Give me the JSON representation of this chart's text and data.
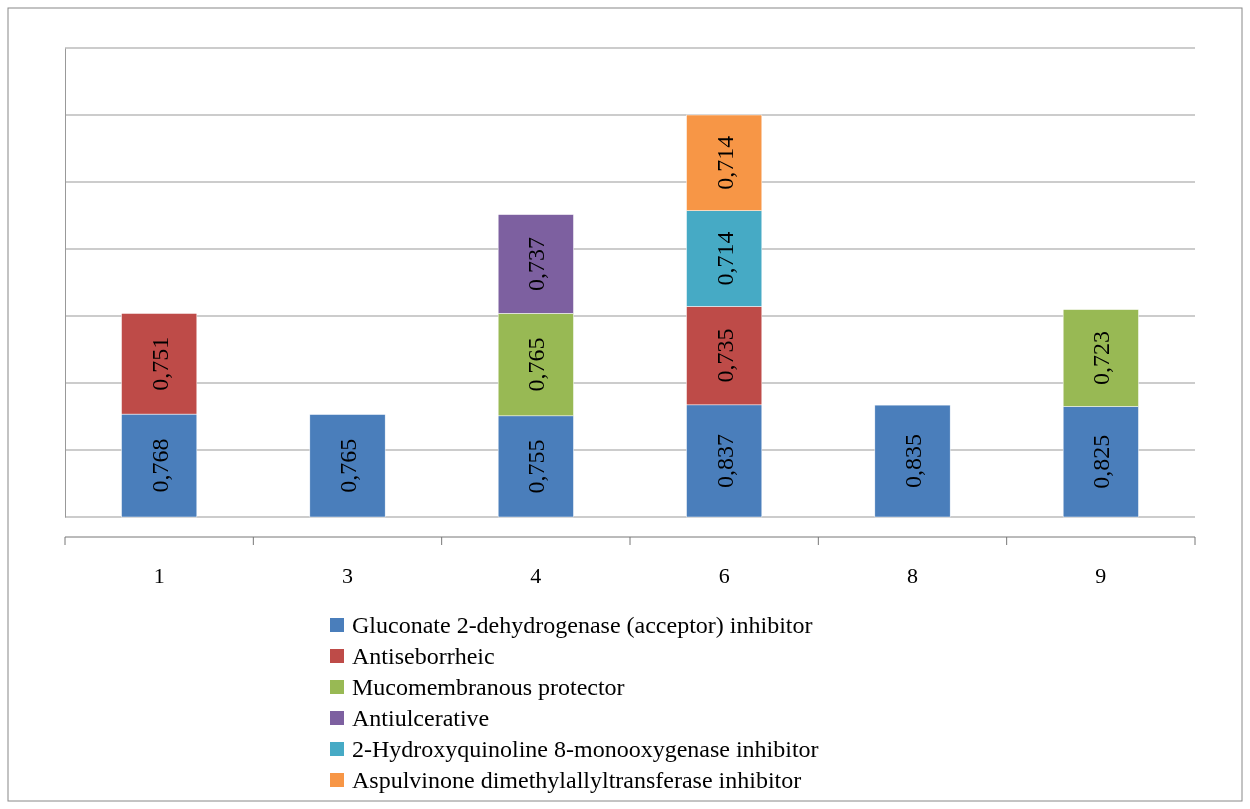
{
  "chart_data": {
    "type": "bar",
    "stacked": true,
    "categories": [
      "1",
      "3",
      "4",
      "6",
      "8",
      "9"
    ],
    "ylim": [
      0,
      3.5
    ],
    "yticks": [
      {
        "value": 0,
        "label": null
      },
      {
        "value": 0.5,
        "label": null
      },
      {
        "value": 1,
        "label": null
      },
      {
        "value": 1.5,
        "label": null
      },
      {
        "value": 2,
        "label": null
      },
      {
        "value": 2.5,
        "label": null
      },
      {
        "value": 3,
        "label": null
      },
      {
        "value": 3.5,
        "label": null
      }
    ],
    "grid": "y",
    "legend": "bottom",
    "series": [
      {
        "name": "Gluconate 2-dehydrogenase (acceptor) inhibitor",
        "color": "#4a7ebb",
        "values": [
          0.768,
          0.765,
          0.755,
          0.837,
          0.835,
          0.825
        ],
        "value_labels": [
          "0,768",
          "0,765",
          "0,755",
          "0,837",
          "0,835",
          "0,825"
        ]
      },
      {
        "name": "Antiseborrheic",
        "color": "#be4b48",
        "values": [
          0.751,
          null,
          null,
          0.735,
          null,
          null
        ],
        "value_labels": [
          "0,751",
          null,
          null,
          "0,735",
          null,
          null
        ]
      },
      {
        "name": "Mucomembranous protector",
        "color": "#98b954",
        "values": [
          null,
          null,
          0.765,
          null,
          null,
          0.723
        ],
        "value_labels": [
          null,
          null,
          "0,765",
          null,
          null,
          "0,723"
        ]
      },
      {
        "name": "Antiulcerative",
        "color": "#7d60a0",
        "values": [
          null,
          null,
          0.737,
          null,
          null,
          null
        ],
        "value_labels": [
          null,
          null,
          "0,737",
          null,
          null,
          null
        ]
      },
      {
        "name": "2-Hydroxyquinoline 8-monooxygenase inhibitor",
        "color": "#46aac5",
        "values": [
          null,
          null,
          null,
          0.714,
          null,
          null
        ],
        "value_labels": [
          null,
          null,
          null,
          "0,714",
          null,
          null
        ]
      },
      {
        "name": "Aspulvinone dimethylallyltransferase inhibitor",
        "color": "#f79646",
        "values": [
          null,
          null,
          null,
          0.714,
          null,
          null
        ],
        "value_labels": [
          null,
          null,
          null,
          "0,714",
          null,
          null
        ]
      }
    ]
  }
}
